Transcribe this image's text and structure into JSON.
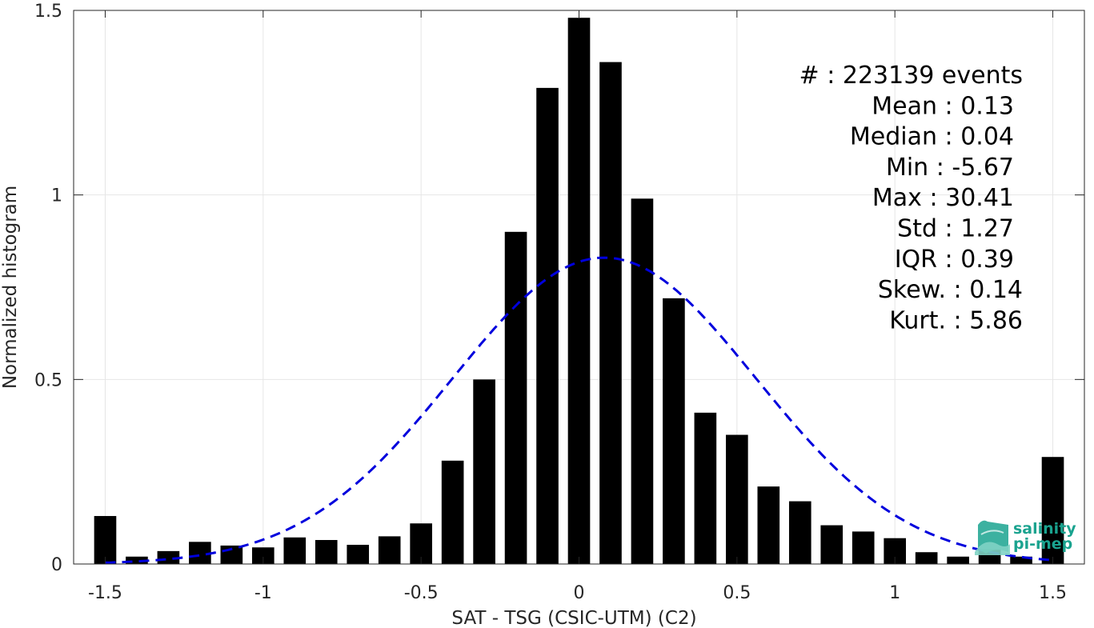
{
  "chart_data": {
    "type": "bar",
    "xlabel": "SAT - TSG (CSIC-UTM) (C2)",
    "ylabel": "Normalized histogram",
    "xlim": [
      -1.6,
      1.6
    ],
    "ylim": [
      0,
      1.5
    ],
    "xticks": [
      "-1.5",
      "-1",
      "-0.5",
      "0",
      "0.5",
      "1",
      "1.5"
    ],
    "yticks": [
      "0",
      "0.5",
      "1",
      "1.5"
    ],
    "grid": true,
    "bar_color": "#000000",
    "bar_width": 0.07,
    "bars": {
      "x": [
        -1.5,
        -1.4,
        -1.3,
        -1.2,
        -1.1,
        -1.0,
        -0.9,
        -0.8,
        -0.7,
        -0.6,
        -0.5,
        -0.4,
        -0.3,
        -0.2,
        -0.1,
        0.0,
        0.1,
        0.2,
        0.3,
        0.4,
        0.5,
        0.6,
        0.7,
        0.8,
        0.9,
        1.0,
        1.1,
        1.2,
        1.3,
        1.4,
        1.5
      ],
      "values": [
        0.13,
        0.02,
        0.035,
        0.06,
        0.05,
        0.045,
        0.072,
        0.065,
        0.052,
        0.075,
        0.11,
        0.28,
        0.5,
        0.9,
        1.29,
        1.48,
        1.36,
        0.99,
        0.72,
        0.41,
        0.35,
        0.21,
        0.17,
        0.105,
        0.088,
        0.07,
        0.032,
        0.02,
        0.04,
        0.02,
        0.29
      ]
    },
    "fit": {
      "style": "dashed",
      "color": "#0000dd",
      "mean": 0.08,
      "std": 0.48,
      "peak": 0.83,
      "x_range": [
        -1.5,
        1.5
      ]
    },
    "annotations": [
      "#  : 223139 events",
      "Mean : 0.13",
      "Median : 0.04",
      "Min : -5.67",
      "Max : 30.41",
      "Std : 1.27",
      "IQR : 0.39",
      "Skew. : 0.14",
      "Kurt. : 5.86"
    ]
  },
  "logo": {
    "line1": "salinity",
    "line2": "pi-mep",
    "color": "#1aa38f"
  }
}
